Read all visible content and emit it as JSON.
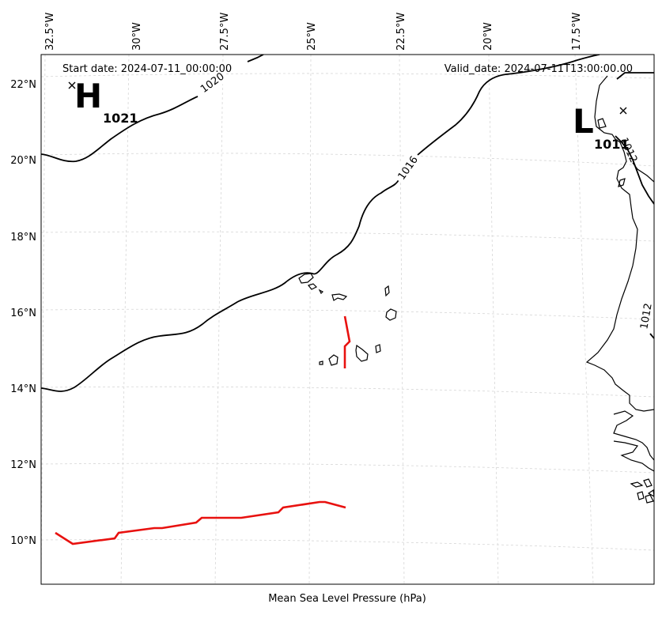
{
  "header": {
    "start_date": "Start date: 2024-07-11_00:00:00",
    "valid_date": "Valid_date: 2024-07-11T13:00:00.00"
  },
  "footer": {
    "label": "Mean Sea Level Pressure (hPa)"
  },
  "axes": {
    "longitude_labels": [
      "32.5°W",
      "30°W",
      "27.5°W",
      "25°W",
      "22.5°W",
      "20°W",
      "17.5°W"
    ],
    "latitude_labels": [
      "22°N",
      "20°N",
      "18°N",
      "16°N",
      "14°N",
      "12°N",
      "10°N"
    ]
  },
  "pressure_centers": {
    "high": {
      "letter": "H",
      "value": "1021"
    },
    "low": {
      "letter": "L",
      "value": "1011"
    }
  },
  "isobar_labels": {
    "c1020": "1020",
    "c1016": "1016",
    "c1012a": "1012",
    "c1012b": "1012"
  },
  "colors": {
    "track": "#e8110f",
    "isobar": "#000000",
    "grid": "#d6d6d6"
  }
}
